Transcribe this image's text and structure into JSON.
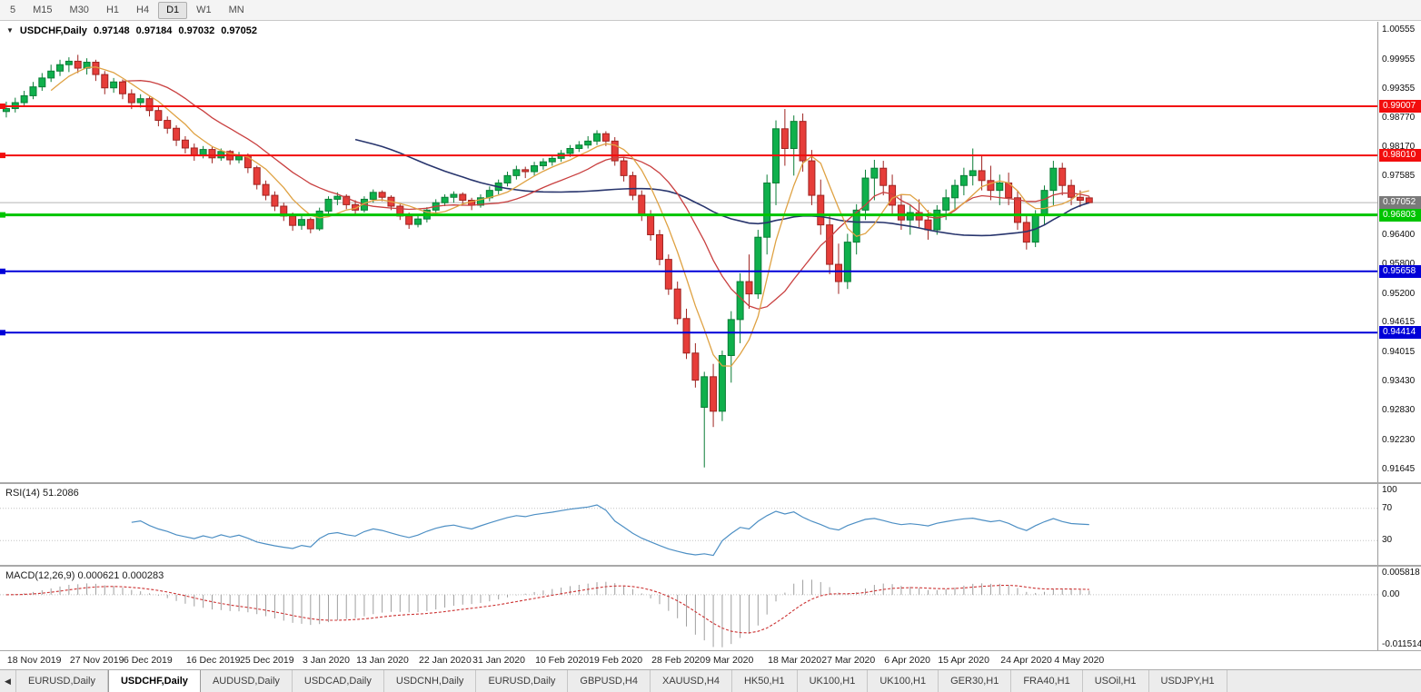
{
  "toolbar": {
    "timeframes": [
      "5",
      "M15",
      "M30",
      "H1",
      "H4",
      "D1",
      "W1",
      "MN"
    ],
    "active": "D1"
  },
  "chart_header": {
    "collapse_icon": "▼",
    "symbol": "USDCHF,Daily",
    "open": "0.97148",
    "high": "0.97184",
    "low": "0.97032",
    "close": "0.97052"
  },
  "price_axis": {
    "labels": [
      "1.00555",
      "0.99955",
      "0.99355",
      "0.98770",
      "0.98170",
      "0.97585",
      "0.96400",
      "0.95800",
      "0.95200",
      "0.94615",
      "0.94015",
      "0.93430",
      "0.92830",
      "0.92230",
      "0.91645"
    ]
  },
  "lines": {
    "horizontal": [
      {
        "price": 0.99007,
        "label": "0.99007",
        "color": "#f20d0d",
        "width": 2
      },
      {
        "price": 0.9801,
        "label": "0.98010",
        "color": "#f20d0d",
        "width": 2
      },
      {
        "price": 0.96803,
        "label": "0.96803",
        "color": "#00c400",
        "width": 3
      },
      {
        "price": 0.95658,
        "label": "0.95658",
        "color": "#0000d8",
        "width": 2
      },
      {
        "price": 0.94414,
        "label": "0.94414",
        "color": "#0000d8",
        "width": 2
      }
    ],
    "current": {
      "value": 0.97052,
      "label": "0.97052",
      "color": "#b4b4b4"
    }
  },
  "panes": {
    "rsi": {
      "label": "RSI(14) 51.2086",
      "period": 14,
      "current_value": 51.2086,
      "levels": [
        100,
        70,
        30
      ]
    },
    "macd": {
      "label": "MACD(12,26,9) 0.000621 0.000283",
      "params": [
        12,
        26,
        9
      ],
      "current_macd": 0.000621,
      "current_signal": 0.000283,
      "axis_max": 0.005818,
      "axis_min": -0.011514,
      "axis_labels": [
        "0.005818",
        "0.00",
        "-0.011514"
      ]
    }
  },
  "tabs": {
    "scroll_left_icon": "◀",
    "items": [
      "EURUSD,Daily",
      "USDCHF,Daily",
      "AUDUSD,Daily",
      "USDCAD,Daily",
      "USDCNH,Daily",
      "EURUSD,Daily",
      "GBPUSD,H4",
      "XAUUSD,H4",
      "HK50,H1",
      "UK100,H1",
      "UK100,H1",
      "GER30,H1",
      "FRA40,H1",
      "USOil,H1",
      "USDJPY,H1"
    ],
    "active_index": 1
  },
  "colors": {
    "bull": "#0fb04c",
    "bull_border": "#0a7d36",
    "bear": "#e63d39",
    "bear_border": "#9e2421",
    "ma_fast": "#dfa243",
    "ma_mid": "#c94040",
    "ma_slow": "#28356d",
    "rsi_line": "#4d8fc4",
    "rsi_level": "#c4c4c4",
    "macd_hist": "#9f9f9f",
    "macd_signal": "#cc3333",
    "macd_zero": "#c4c4c4",
    "current_tag": "#7a7a7a"
  },
  "chart_data": {
    "type": "candlestick",
    "title": "USDCHF,Daily",
    "symbol": "USDCHF",
    "timeframe": "Daily",
    "ylim": [
      0.9138,
      1.0072
    ],
    "overlays": {
      "sma_fast_period": 6,
      "sma_mid_period": 14,
      "sma_slow_period": 40
    },
    "indicators": {
      "rsi_period": 14,
      "macd_params": [
        12,
        26,
        9
      ]
    },
    "x_labels": [
      {
        "text": "18 Nov 2019",
        "index": 0
      },
      {
        "text": "27 Nov 2019",
        "index": 7
      },
      {
        "text": "6 Dec 2019",
        "index": 13
      },
      {
        "text": "16 Dec 2019",
        "index": 20
      },
      {
        "text": "25 Dec 2019",
        "index": 26
      },
      {
        "text": "3 Jan 2020",
        "index": 33
      },
      {
        "text": "13 Jan 2020",
        "index": 39
      },
      {
        "text": "22 Jan 2020",
        "index": 46
      },
      {
        "text": "31 Jan 2020",
        "index": 52
      },
      {
        "text": "10 Feb 2020",
        "index": 59
      },
      {
        "text": "19 Feb 2020",
        "index": 65
      },
      {
        "text": "28 Feb 2020",
        "index": 72
      },
      {
        "text": "9 Mar 2020",
        "index": 78
      },
      {
        "text": "18 Mar 2020",
        "index": 85
      },
      {
        "text": "27 Mar 2020",
        "index": 91
      },
      {
        "text": "6 Apr 2020",
        "index": 98
      },
      {
        "text": "15 Apr 2020",
        "index": 104
      },
      {
        "text": "24 Apr 2020",
        "index": 111
      },
      {
        "text": "4 May 2020",
        "index": 117
      }
    ],
    "candles": [
      [
        0.989,
        0.991,
        0.9878,
        0.9896
      ],
      [
        0.9896,
        0.9918,
        0.9888,
        0.9908
      ],
      [
        0.9908,
        0.9932,
        0.99,
        0.9922
      ],
      [
        0.9922,
        0.995,
        0.9915,
        0.994
      ],
      [
        0.994,
        0.9968,
        0.9932,
        0.9958
      ],
      [
        0.9958,
        0.9985,
        0.995,
        0.9972
      ],
      [
        0.9972,
        0.9995,
        0.9962,
        0.9985
      ],
      [
        0.9985,
        1.0,
        0.997,
        0.9992
      ],
      [
        0.9992,
        1.0005,
        0.9968,
        0.9978
      ],
      [
        0.9978,
        0.9998,
        0.9965,
        0.999
      ],
      [
        0.999,
        0.9995,
        0.9952,
        0.9965
      ],
      [
        0.9965,
        0.9972,
        0.9925,
        0.9938
      ],
      [
        0.9938,
        0.9958,
        0.9928,
        0.995
      ],
      [
        0.995,
        0.9955,
        0.9915,
        0.9926
      ],
      [
        0.9926,
        0.9935,
        0.9895,
        0.9908
      ],
      [
        0.9908,
        0.9925,
        0.9898,
        0.9916
      ],
      [
        0.9916,
        0.992,
        0.988,
        0.9892
      ],
      [
        0.9892,
        0.99,
        0.986,
        0.9872
      ],
      [
        0.9872,
        0.988,
        0.9845,
        0.9856
      ],
      [
        0.9856,
        0.9862,
        0.982,
        0.9832
      ],
      [
        0.9832,
        0.984,
        0.9805,
        0.9816
      ],
      [
        0.9816,
        0.9825,
        0.979,
        0.9801
      ],
      [
        0.9801,
        0.982,
        0.9795,
        0.9813
      ],
      [
        0.9813,
        0.9818,
        0.9785,
        0.9796
      ],
      [
        0.9796,
        0.9815,
        0.979,
        0.9809
      ],
      [
        0.9809,
        0.9812,
        0.9782,
        0.9792
      ],
      [
        0.9792,
        0.9808,
        0.9785,
        0.98
      ],
      [
        0.98,
        0.9805,
        0.9765,
        0.9776
      ],
      [
        0.9776,
        0.978,
        0.9732,
        0.9742
      ],
      [
        0.9742,
        0.975,
        0.971,
        0.972
      ],
      [
        0.972,
        0.9728,
        0.9688,
        0.9698
      ],
      [
        0.9698,
        0.9705,
        0.9668,
        0.9678
      ],
      [
        0.9678,
        0.9685,
        0.9648,
        0.9659
      ],
      [
        0.9659,
        0.9678,
        0.965,
        0.9671
      ],
      [
        0.9671,
        0.9675,
        0.9643,
        0.9652
      ],
      [
        0.9652,
        0.9695,
        0.9648,
        0.9688
      ],
      [
        0.9688,
        0.9718,
        0.968,
        0.9712
      ],
      [
        0.9712,
        0.9726,
        0.97,
        0.9718
      ],
      [
        0.9718,
        0.9722,
        0.9692,
        0.9701
      ],
      [
        0.9701,
        0.971,
        0.968,
        0.969
      ],
      [
        0.969,
        0.9718,
        0.9685,
        0.9712
      ],
      [
        0.9712,
        0.9732,
        0.9705,
        0.9726
      ],
      [
        0.9726,
        0.973,
        0.9708,
        0.9716
      ],
      [
        0.9716,
        0.972,
        0.969,
        0.9698
      ],
      [
        0.9698,
        0.9702,
        0.967,
        0.9678
      ],
      [
        0.9678,
        0.9685,
        0.9652,
        0.9661
      ],
      [
        0.9661,
        0.968,
        0.9655,
        0.9672
      ],
      [
        0.9672,
        0.9696,
        0.9665,
        0.969
      ],
      [
        0.969,
        0.9712,
        0.9682,
        0.9705
      ],
      [
        0.9705,
        0.9722,
        0.9698,
        0.9716
      ],
      [
        0.9716,
        0.9728,
        0.9705,
        0.9722
      ],
      [
        0.9722,
        0.9726,
        0.97,
        0.971
      ],
      [
        0.971,
        0.9715,
        0.969,
        0.97
      ],
      [
        0.97,
        0.9722,
        0.9695,
        0.9715
      ],
      [
        0.9715,
        0.9738,
        0.9708,
        0.973
      ],
      [
        0.973,
        0.9752,
        0.9722,
        0.9745
      ],
      [
        0.9745,
        0.9768,
        0.9738,
        0.976
      ],
      [
        0.976,
        0.978,
        0.9752,
        0.9772
      ],
      [
        0.9772,
        0.9778,
        0.9755,
        0.9768
      ],
      [
        0.9768,
        0.9788,
        0.976,
        0.978
      ],
      [
        0.978,
        0.9795,
        0.9772,
        0.9788
      ],
      [
        0.9788,
        0.9802,
        0.978,
        0.9795
      ],
      [
        0.9795,
        0.9812,
        0.9788,
        0.9805
      ],
      [
        0.9805,
        0.9822,
        0.9798,
        0.9815
      ],
      [
        0.9815,
        0.983,
        0.9808,
        0.9822
      ],
      [
        0.9822,
        0.984,
        0.9815,
        0.983
      ],
      [
        0.983,
        0.9852,
        0.9822,
        0.9845
      ],
      [
        0.9845,
        0.985,
        0.982,
        0.983
      ],
      [
        0.983,
        0.9838,
        0.978,
        0.979
      ],
      [
        0.979,
        0.9798,
        0.9748,
        0.976
      ],
      [
        0.976,
        0.9768,
        0.971,
        0.972
      ],
      [
        0.972,
        0.973,
        0.9668,
        0.968
      ],
      [
        0.968,
        0.969,
        0.9628,
        0.964
      ],
      [
        0.964,
        0.965,
        0.9578,
        0.959
      ],
      [
        0.959,
        0.96,
        0.9518,
        0.953
      ],
      [
        0.953,
        0.9545,
        0.9458,
        0.947
      ],
      [
        0.947,
        0.949,
        0.9388,
        0.94
      ],
      [
        0.94,
        0.942,
        0.933,
        0.9345
      ],
      [
        0.929,
        0.9362,
        0.9168,
        0.9352
      ],
      [
        0.9352,
        0.9378,
        0.925,
        0.9282
      ],
      [
        0.9282,
        0.9405,
        0.9262,
        0.9395
      ],
      [
        0.9395,
        0.9485,
        0.934,
        0.9468
      ],
      [
        0.9468,
        0.9562,
        0.942,
        0.9545
      ],
      [
        0.9545,
        0.96,
        0.949,
        0.952
      ],
      [
        0.952,
        0.965,
        0.951,
        0.9635
      ],
      [
        0.9635,
        0.9762,
        0.96,
        0.9745
      ],
      [
        0.9745,
        0.9872,
        0.97,
        0.9855
      ],
      [
        0.9855,
        0.9895,
        0.978,
        0.9815
      ],
      [
        0.9815,
        0.9882,
        0.976,
        0.987
      ],
      [
        0.987,
        0.9886,
        0.9768,
        0.979
      ],
      [
        0.979,
        0.9812,
        0.97,
        0.972
      ],
      [
        0.972,
        0.9752,
        0.964,
        0.966
      ],
      [
        0.966,
        0.9682,
        0.956,
        0.958
      ],
      [
        0.958,
        0.9622,
        0.952,
        0.9545
      ],
      [
        0.9545,
        0.9642,
        0.953,
        0.9625
      ],
      [
        0.9625,
        0.9702,
        0.96,
        0.969
      ],
      [
        0.969,
        0.9772,
        0.967,
        0.9755
      ],
      [
        0.9755,
        0.9792,
        0.971,
        0.9775
      ],
      [
        0.9775,
        0.979,
        0.972,
        0.974
      ],
      [
        0.974,
        0.9762,
        0.968,
        0.97
      ],
      [
        0.97,
        0.9722,
        0.965,
        0.967
      ],
      [
        0.967,
        0.9702,
        0.964,
        0.9685
      ],
      [
        0.9685,
        0.9712,
        0.9655,
        0.967
      ],
      [
        0.967,
        0.969,
        0.963,
        0.965
      ],
      [
        0.965,
        0.97,
        0.964,
        0.969
      ],
      [
        0.969,
        0.9732,
        0.967,
        0.9715
      ],
      [
        0.9715,
        0.9752,
        0.969,
        0.974
      ],
      [
        0.974,
        0.9776,
        0.972,
        0.976
      ],
      [
        0.976,
        0.9815,
        0.974,
        0.977
      ],
      [
        0.977,
        0.98,
        0.973,
        0.975
      ],
      [
        0.975,
        0.978,
        0.971,
        0.973
      ],
      [
        0.973,
        0.9762,
        0.97,
        0.9745
      ],
      [
        0.9745,
        0.9766,
        0.97,
        0.9715
      ],
      [
        0.9715,
        0.973,
        0.965,
        0.9665
      ],
      [
        0.9665,
        0.968,
        0.961,
        0.9625
      ],
      [
        0.9625,
        0.969,
        0.9615,
        0.968
      ],
      [
        0.968,
        0.974,
        0.966,
        0.973
      ],
      [
        0.973,
        0.979,
        0.97,
        0.9775
      ],
      [
        0.9775,
        0.9786,
        0.972,
        0.974
      ],
      [
        0.974,
        0.9752,
        0.97,
        0.9716
      ],
      [
        0.9716,
        0.973,
        0.9696,
        0.971
      ],
      [
        0.97148,
        0.97184,
        0.97032,
        0.97052
      ]
    ]
  }
}
